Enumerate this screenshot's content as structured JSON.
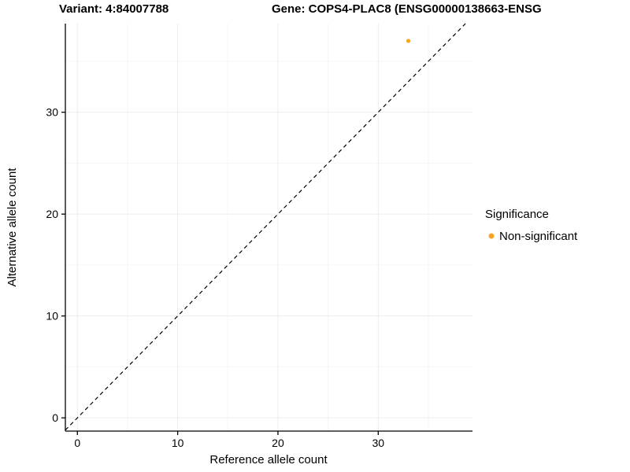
{
  "chart_data": {
    "type": "scatter",
    "title_variant": "Variant: 4:84007788",
    "title_gene": "Gene: COPS4-PLAC8 (ENSG00000138663-ENSG",
    "xlabel": "Reference allele count",
    "ylabel": "Alternative allele count",
    "xlim": [
      -1.2,
      39.4
    ],
    "ylim": [
      -1.3,
      38.7
    ],
    "xticks": [
      0,
      10,
      20,
      30
    ],
    "yticks": [
      0,
      10,
      20,
      30
    ],
    "minor_xticks": [
      5,
      15,
      25,
      35
    ],
    "minor_yticks": [
      5,
      15,
      25,
      35
    ],
    "grid": true,
    "points": [
      {
        "x": 33,
        "y": 37,
        "series": "Non-significant"
      }
    ],
    "identity_line": {
      "style": "dashed",
      "slope": 1,
      "intercept": 0
    },
    "legend": {
      "position": "right",
      "title": "Significance",
      "entries": [
        {
          "label": "Non-significant",
          "color": "#F5A623"
        }
      ]
    },
    "colors": {
      "point": "#F5A623",
      "axis": "#000000",
      "grid_major": "#EDEDED",
      "grid_minor": "#F6F6F6",
      "line": "#000000"
    }
  }
}
